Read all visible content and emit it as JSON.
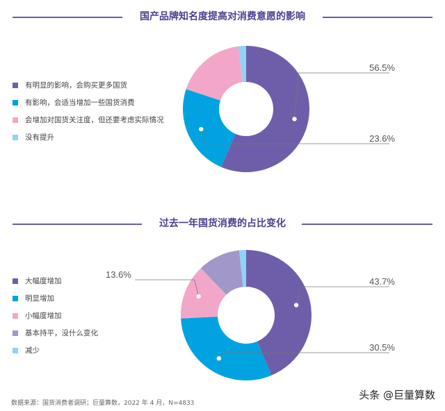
{
  "chart_data": [
    {
      "type": "pie",
      "donut": true,
      "title": "国产品牌知名度提高对消费意愿的影响",
      "categories": [
        "有明显的影响，会购买更多国货",
        "有影响，会适当增加一些国货消费",
        "会增加对国货关注度，但还要考虑实际情况",
        "没有提升"
      ],
      "values": [
        56.5,
        23.6,
        17.9,
        2.0
      ],
      "colors": [
        "#6e5eaa",
        "#00a3e0",
        "#f2a7c9",
        "#8fd3f5"
      ],
      "data_labels": [
        {
          "index": 0,
          "text": "56.5%"
        },
        {
          "index": 1,
          "text": "23.6%"
        }
      ],
      "legend_position": "left"
    },
    {
      "type": "pie",
      "donut": true,
      "title": "过去一年国货消费的占比变化",
      "categories": [
        "大幅度增加",
        "明显增加",
        "小幅度增加",
        "基本持平，没什么变化",
        "减少"
      ],
      "values": [
        43.7,
        30.5,
        13.6,
        10.5,
        1.7
      ],
      "colors": [
        "#6e5eaa",
        "#00a3e0",
        "#f2a7c9",
        "#a197c9",
        "#8fd3f5"
      ],
      "data_labels": [
        {
          "index": 0,
          "text": "43.7%"
        },
        {
          "index": 1,
          "text": "30.5%"
        },
        {
          "index": 2,
          "text": "13.6%"
        }
      ],
      "legend_position": "left"
    }
  ],
  "footer": "数据来源：国货消费者调研；巨量算数，2022 年 4 月，N=4833",
  "watermark": "头条 @巨量算数"
}
